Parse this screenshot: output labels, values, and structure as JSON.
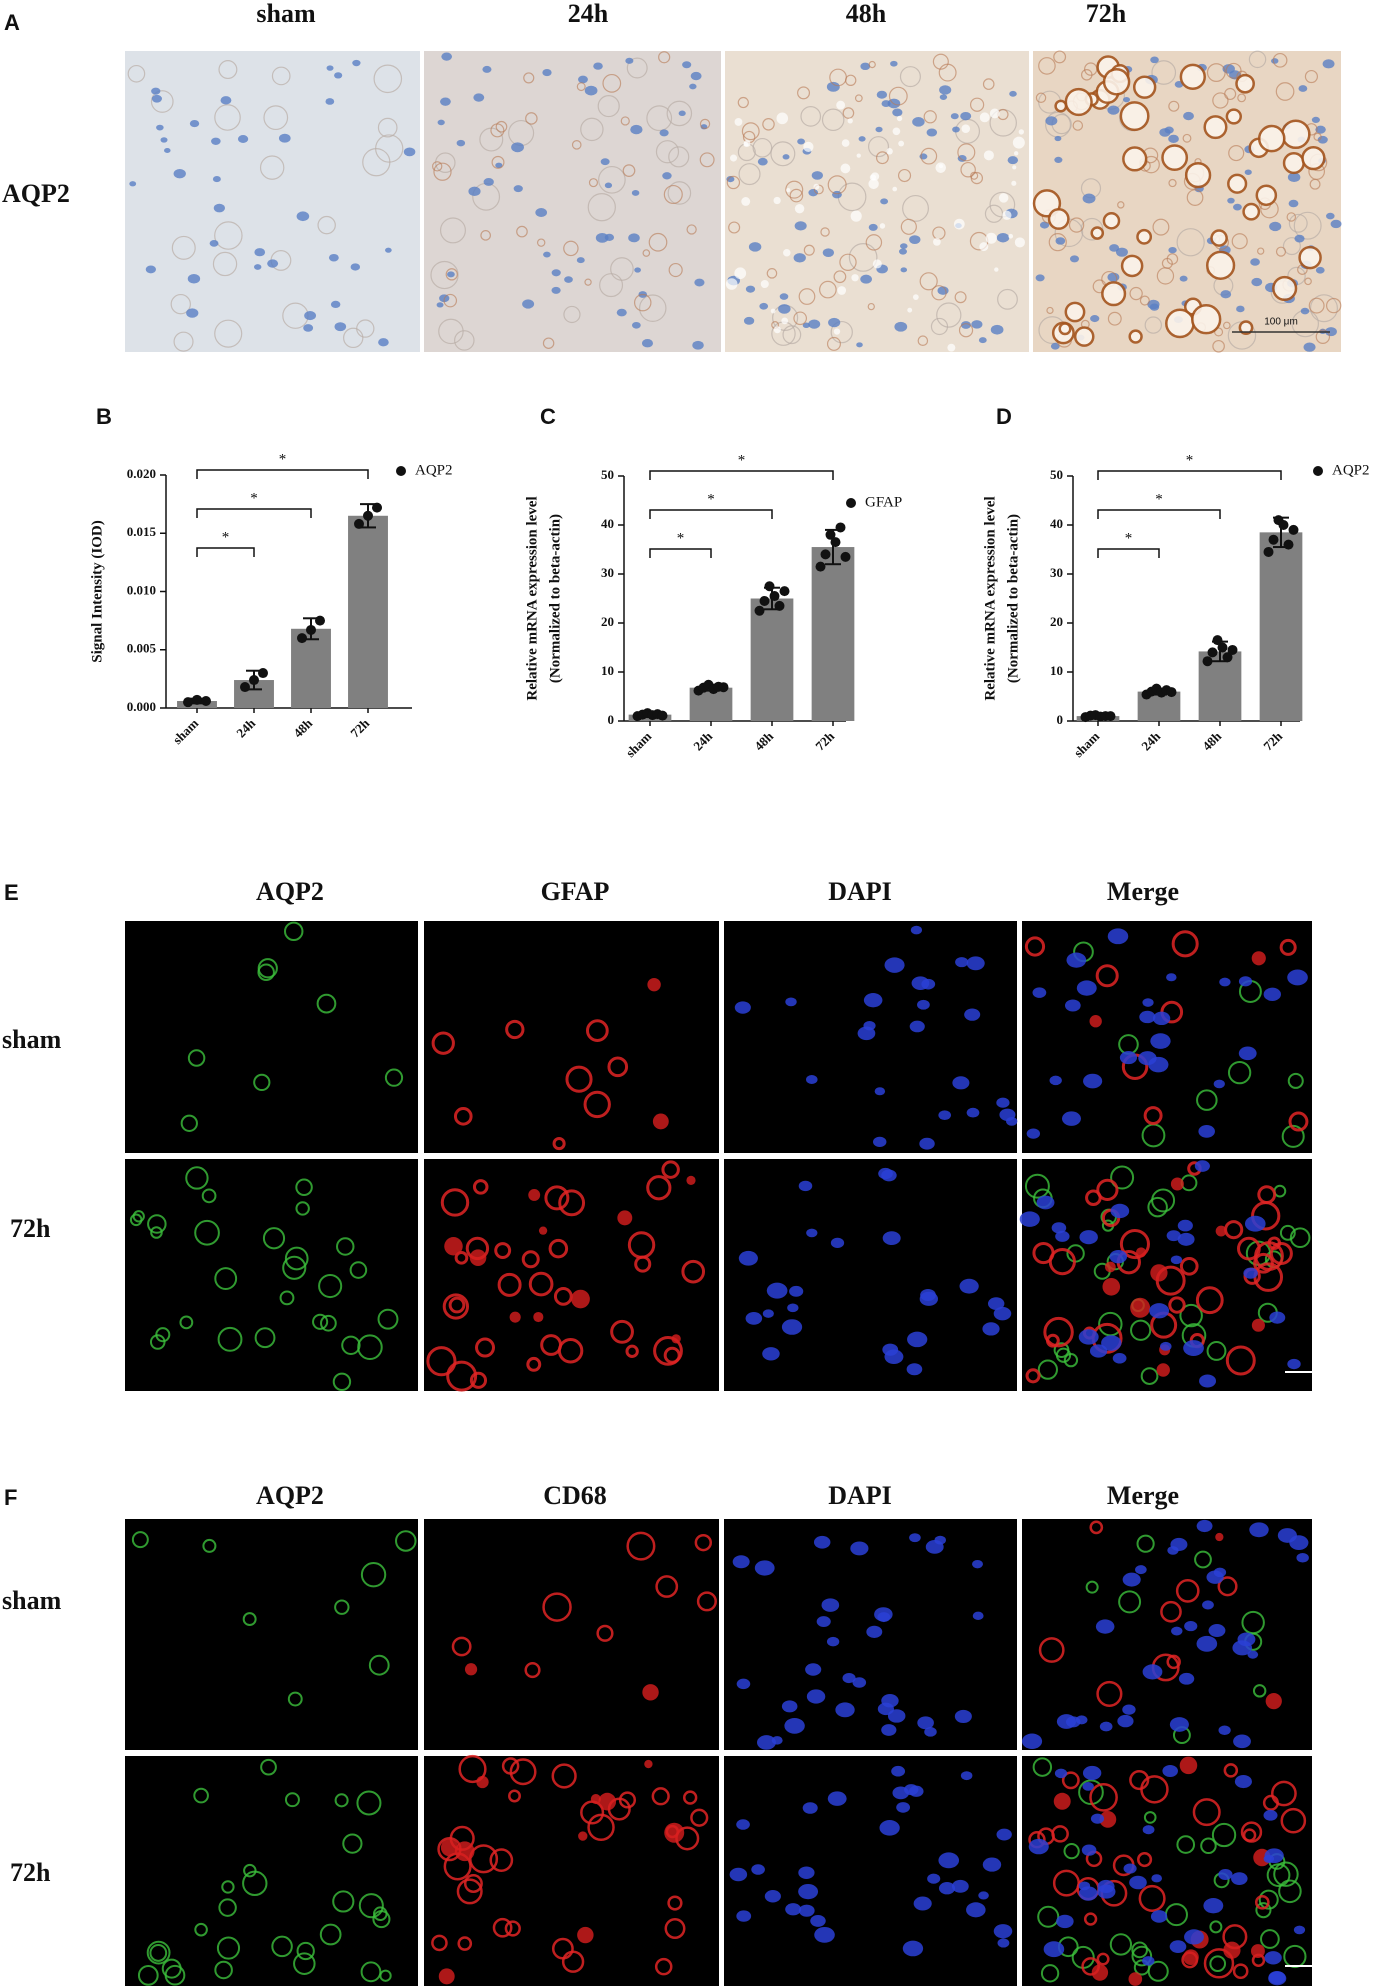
{
  "panel_a": {
    "label": "A",
    "columns": [
      "sham",
      "24h",
      "48h",
      "72h"
    ],
    "row_label": "AQP2",
    "scale_bar": "100 μm"
  },
  "chart_data": [
    {
      "type": "bar",
      "label": "B",
      "y_label": "Signal Intensity (IOD)",
      "categories": [
        "sham",
        "24h",
        "48h",
        "72h"
      ],
      "series": [
        {
          "name": "AQP2",
          "color": "#808080",
          "point_color": "#111111",
          "values": [
            0.0006,
            0.0024,
            0.0068,
            0.0165
          ],
          "errors": [
            0.0002,
            0.0008,
            0.0009,
            0.001
          ],
          "points": [
            [
              0.0005,
              0.0007,
              0.0006
            ],
            [
              0.0018,
              0.0024,
              0.003
            ],
            [
              0.006,
              0.0067,
              0.0075
            ],
            [
              0.0158,
              0.0165,
              0.0172
            ]
          ]
        }
      ],
      "ylim": [
        0,
        0.02
      ],
      "yticks": [
        {
          "value": 0,
          "label": "0.000"
        },
        {
          "value": 0.005,
          "label": "0.005"
        },
        {
          "value": 0.01,
          "label": "0.010"
        },
        {
          "value": 0.015,
          "label": "0.015"
        },
        {
          "value": 0.02,
          "label": "0.020"
        }
      ],
      "comparisons": [
        {
          "between": [
            "sham",
            "24h"
          ],
          "label": "*"
        },
        {
          "between": [
            "sham",
            "48h"
          ],
          "label": "*"
        },
        {
          "between": [
            "sham",
            "72h"
          ],
          "label": "*"
        }
      ]
    },
    {
      "type": "bar",
      "label": "C",
      "y_label": [
        "Relative mRNA expression level",
        "(Normalized to beta-actin)"
      ],
      "categories": [
        "sham",
        "24h",
        "48h",
        "72h"
      ],
      "series": [
        {
          "name": "GFAP",
          "color": "#808080",
          "point_color": "#111111",
          "values": [
            1.3,
            6.8,
            25,
            35.5
          ],
          "errors": [
            0.4,
            0.6,
            2.2,
            3.5
          ],
          "points": [
            [
              1.0,
              1.3,
              1.6,
              1.2,
              1.4,
              1.1
            ],
            [
              6.2,
              6.8,
              7.4,
              6.5,
              7.0,
              6.9
            ],
            [
              22.5,
              24.5,
              27.5,
              25.5,
              23.5,
              26.5
            ],
            [
              31.5,
              34,
              38,
              36.5,
              39.5,
              33.5
            ]
          ]
        }
      ],
      "ylim": [
        0,
        50
      ],
      "yticks": [
        0,
        10,
        20,
        30,
        40,
        50
      ],
      "comparisons": [
        {
          "between": [
            "sham",
            "24h"
          ],
          "label": "*"
        },
        {
          "between": [
            "sham",
            "48h"
          ],
          "label": "*"
        },
        {
          "between": [
            "sham",
            "72h"
          ],
          "label": "*"
        }
      ]
    },
    {
      "type": "bar",
      "label": "D",
      "y_label": [
        "Relative mRNA expression level",
        "(Normalized to beta-actin)"
      ],
      "categories": [
        "sham",
        "24h",
        "48h",
        "72h"
      ],
      "series": [
        {
          "name": "AQP2",
          "color": "#808080",
          "point_color": "#111111",
          "values": [
            1.0,
            6.0,
            14.2,
            38.5
          ],
          "errors": [
            0.3,
            0.6,
            2.0,
            3.0
          ],
          "points": [
            [
              0.8,
              1.1,
              1.2,
              0.9,
              1.0,
              1.0
            ],
            [
              5.4,
              6.0,
              6.6,
              5.8,
              6.3,
              5.9
            ],
            [
              12.2,
              14,
              16.5,
              15,
              13,
              14.5
            ],
            [
              34.5,
              37,
              41,
              40,
              36,
              39
            ]
          ]
        }
      ],
      "ylim": [
        0,
        50
      ],
      "yticks": [
        0,
        10,
        20,
        30,
        40,
        50
      ],
      "comparisons": [
        {
          "between": [
            "sham",
            "24h"
          ],
          "label": "*"
        },
        {
          "between": [
            "sham",
            "48h"
          ],
          "label": "*"
        },
        {
          "between": [
            "sham",
            "72h"
          ],
          "label": "*"
        }
      ]
    }
  ],
  "panel_e": {
    "label": "E",
    "columns": [
      "AQP2",
      "GFAP",
      "DAPI",
      "Merge"
    ],
    "rows": [
      "sham",
      "72h"
    ]
  },
  "panel_f": {
    "label": "F",
    "columns": [
      "AQP2",
      "CD68",
      "DAPI",
      "Merge"
    ],
    "rows": [
      "sham",
      "72h"
    ]
  }
}
